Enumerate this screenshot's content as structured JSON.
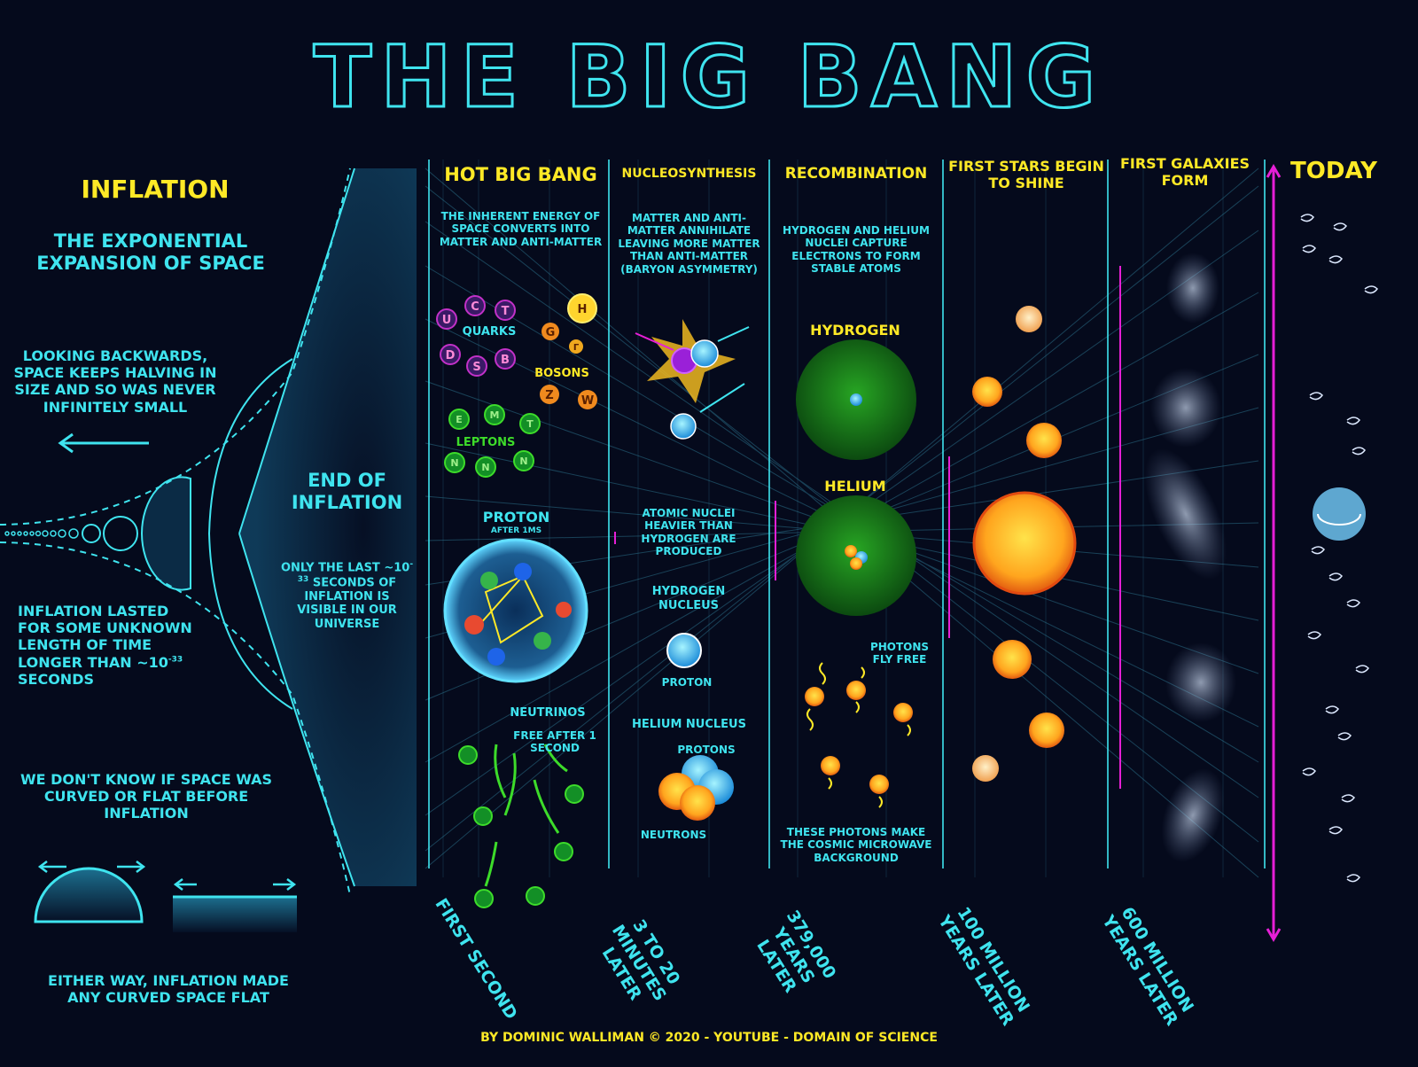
{
  "title": "THE BIG BANG",
  "inflation": {
    "heading": "INFLATION",
    "subtitle": "THE EXPONENTIAL EXPANSION OF SPACE",
    "looking_back": "LOOKING BACKWARDS, SPACE KEEPS HALVING IN SIZE AND SO WAS NEVER INFINITELY SMALL",
    "lasted": "INFLATION LASTED FOR SOME UNKNOWN LENGTH OF TIME LONGER THAN ~10",
    "lasted_exp": "-33",
    "lasted_suffix": " SECONDS",
    "curvature": "WE DON'T KNOW IF SPACE WAS CURVED OR FLAT BEFORE INFLATION",
    "either_way": "EITHER WAY, INFLATION MADE ANY CURVED SPACE FLAT"
  },
  "end_of_inflation": {
    "heading": "END OF INFLATION",
    "text_pre": "ONLY THE LAST ~10",
    "text_exp": "-33",
    "text_post": " SECONDS OF INFLATION IS VISIBLE IN OUR UNIVERSE"
  },
  "hot_big_bang": {
    "heading": "HOT BIG BANG",
    "text": "THE INHERENT ENERGY OF SPACE CONVERTS INTO MATTER AND ANTI-MATTER",
    "quarks": "QUARKS",
    "bosons": "BOSONS",
    "leptons": "LEPTONS",
    "proton": "PROTON",
    "proton_after": "AFTER 1µs",
    "neutrinos": "NEUTRINOS",
    "neutrinos_free": "FREE AFTER 1 SECOND",
    "quark_letters": [
      "u",
      "c",
      "t",
      "d",
      "s",
      "b"
    ],
    "boson_letters": [
      "H",
      "g",
      "γ",
      "Z",
      "W"
    ],
    "lepton_letters": [
      "e",
      "μ",
      "τ",
      "ν",
      "ν",
      "ν"
    ]
  },
  "nucleosynthesis": {
    "heading": "NUCLEOSYNTHESIS",
    "text": "MATTER AND ANTI-MATTER ANNIHILATE LEAVING MORE MATTER THAN ANTI-MATTER (BARYON ASYMMETRY)",
    "heavier": "ATOMIC NUCLEI HEAVIER THAN HYDROGEN ARE PRODUCED",
    "hydrogen_nucleus": "HYDROGEN NUCLEUS",
    "proton": "PROTON",
    "helium_nucleus": "HELIUM NUCLEUS",
    "protons": "PROTONS",
    "neutrons": "NEUTRONS"
  },
  "recombination": {
    "heading": "RECOMBINATION",
    "text": "HYDROGEN AND HELIUM NUCLEI CAPTURE ELECTRONS TO FORM STABLE ATOMS",
    "hydrogen": "HYDROGEN",
    "helium": "HELIUM",
    "photons": "PHOTONS FLY FREE",
    "cmb": "THESE PHOTONS MAKE THE COSMIC MICROWAVE BACKGROUND"
  },
  "first_stars": {
    "heading": "FIRST STARS BEGIN TO SHINE"
  },
  "first_galaxies": {
    "heading": "FIRST GALAXIES FORM"
  },
  "today": {
    "heading": "TODAY"
  },
  "timeline": [
    "FIRST SECOND",
    "3 TO 20 MINUTES LATER",
    "379,000 YEARS LATER",
    "100 MILLION YEARS LATER",
    "600 MILLION YEARS LATER"
  ],
  "credit": "BY DOMINIC WALLIMAN © 2020 - YOUTUBE - DOMAIN OF SCIENCE",
  "colors": {
    "background": "#050a1c",
    "cyan": "#3fe4ef",
    "yellow": "#ffe926",
    "green": "#3ddc2a",
    "magenta": "#e61fd6"
  }
}
